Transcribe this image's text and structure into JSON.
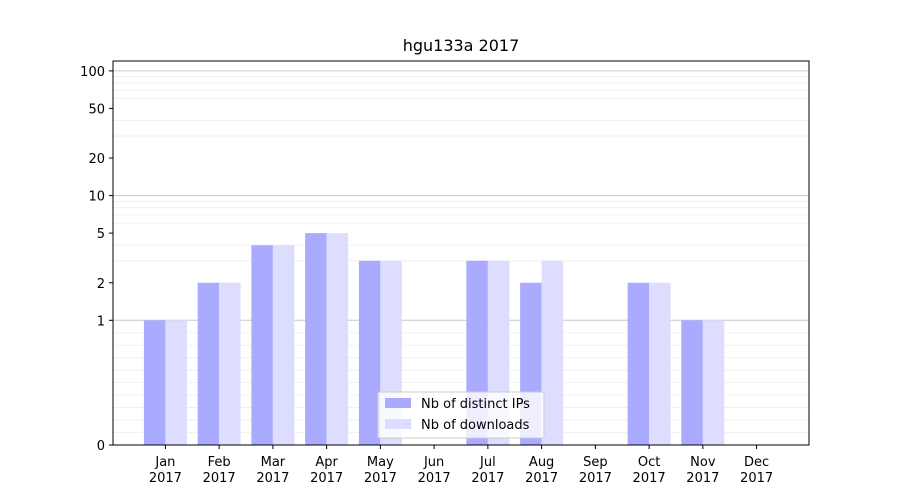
{
  "chart_data": {
    "type": "bar",
    "title": "hgu133a 2017",
    "xlabel": "",
    "ylabel": "",
    "y_scale": "symlog",
    "ylim": [
      0,
      120
    ],
    "y_ticks": [
      0,
      1,
      2,
      5,
      10,
      20,
      50,
      100
    ],
    "grid": "horizontal",
    "legend_placement": "lower center",
    "categories": [
      {
        "month": "Jan",
        "year": "2017"
      },
      {
        "month": "Feb",
        "year": "2017"
      },
      {
        "month": "Mar",
        "year": "2017"
      },
      {
        "month": "Apr",
        "year": "2017"
      },
      {
        "month": "May",
        "year": "2017"
      },
      {
        "month": "Jun",
        "year": "2017"
      },
      {
        "month": "Jul",
        "year": "2017"
      },
      {
        "month": "Aug",
        "year": "2017"
      },
      {
        "month": "Sep",
        "year": "2017"
      },
      {
        "month": "Oct",
        "year": "2017"
      },
      {
        "month": "Nov",
        "year": "2017"
      },
      {
        "month": "Dec",
        "year": "2017"
      }
    ],
    "series": [
      {
        "name": "Nb of distinct IPs",
        "color": "#aaaaff",
        "values": [
          1,
          2,
          4,
          5,
          3,
          0,
          3,
          2,
          0,
          2,
          1,
          0
        ]
      },
      {
        "name": "Nb of downloads",
        "color": "#ddddff",
        "values": [
          1,
          2,
          4,
          5,
          3,
          0,
          3,
          3,
          0,
          2,
          1,
          0
        ]
      }
    ]
  }
}
